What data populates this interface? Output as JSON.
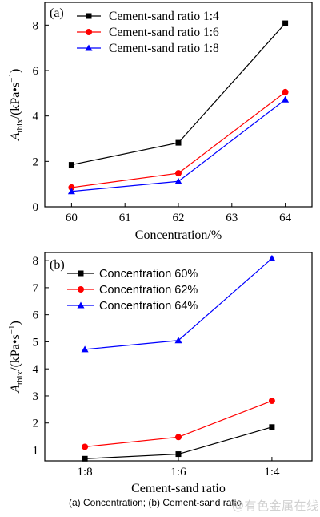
{
  "chart_data": [
    {
      "type": "line",
      "panel_label": "(a)",
      "xlabel": "Concentration/%",
      "ylabel_main": "A",
      "ylabel_sub": "thix",
      "ylabel_unit": "/(kPa•s",
      "ylabel_sup": "−1",
      "ylabel_close": ")",
      "xlim": [
        59.5,
        64.5
      ],
      "ylim": [
        0,
        9
      ],
      "x_ticks": [
        60,
        61,
        62,
        63,
        64
      ],
      "y_ticks": [
        0,
        2,
        4,
        6,
        8
      ],
      "grid": false,
      "legend_position": "top-left",
      "series": [
        {
          "name": "Cement-sand ratio 1:4",
          "color": "#000000",
          "marker": "square",
          "x": [
            60,
            62,
            64
          ],
          "values": [
            1.85,
            2.82,
            8.08
          ]
        },
        {
          "name": "Cement-sand ratio 1:6",
          "color": "#ff0000",
          "marker": "circle",
          "x": [
            60,
            62,
            64
          ],
          "values": [
            0.85,
            1.48,
            5.05
          ]
        },
        {
          "name": "Cement-sand ratio 1:8",
          "color": "#0000ff",
          "marker": "triangle",
          "x": [
            60,
            62,
            64
          ],
          "values": [
            0.68,
            1.12,
            4.72
          ]
        }
      ]
    },
    {
      "type": "line",
      "panel_label": "(b)",
      "xlabel": "Cement-sand ratio",
      "ylabel_main": "A",
      "ylabel_sub": "thix",
      "ylabel_unit": "/(kPa•s",
      "ylabel_sup": "−1",
      "ylabel_close": ")",
      "categories": [
        "1:8",
        "1:6",
        "1:4"
      ],
      "ylim": [
        0.6,
        8.3
      ],
      "y_ticks": [
        1,
        2,
        3,
        4,
        5,
        6,
        7,
        8
      ],
      "grid": false,
      "legend_position": "top-left",
      "series": [
        {
          "name": "Concentration 60%",
          "color": "#000000",
          "marker": "square",
          "values": [
            0.68,
            0.85,
            1.85
          ]
        },
        {
          "name": "Concentration 62%",
          "color": "#ff0000",
          "marker": "circle",
          "values": [
            1.12,
            1.48,
            2.82
          ]
        },
        {
          "name": "Concentration 64%",
          "color": "#0000ff",
          "marker": "triangle",
          "values": [
            4.72,
            5.05,
            8.08
          ]
        }
      ]
    }
  ],
  "caption": "(a) Concentration; (b) Cement-sand ratio",
  "watermark": "@有色金属在线"
}
